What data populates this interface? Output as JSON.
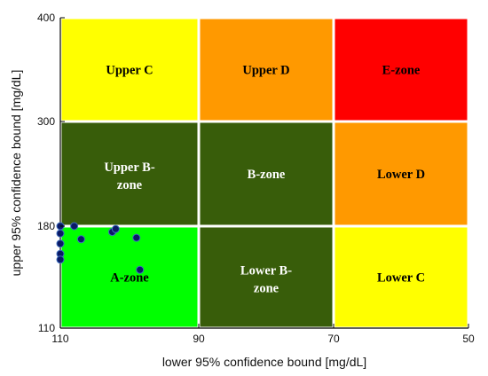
{
  "chart_data": {
    "type": "scatter",
    "title": "",
    "xlabel": "lower 95% confidence bound [mg/dL]",
    "ylabel": "upper 95% confidence bound [mg/dL]",
    "x_ticks": [
      "110",
      "90",
      "70",
      "50"
    ],
    "y_ticks": [
      "400",
      "300",
      "180",
      "110"
    ],
    "x_boundaries": [
      110,
      90,
      70,
      50
    ],
    "y_boundaries": [
      110,
      180,
      300,
      400
    ],
    "zones": [
      {
        "label": "Upper C",
        "color": "#ffff00",
        "text_color": "#000000",
        "x_range": [
          110,
          90
        ],
        "y_range": [
          300,
          400
        ]
      },
      {
        "label": "Upper D",
        "color": "#ff9900",
        "text_color": "#000000",
        "x_range": [
          90,
          70
        ],
        "y_range": [
          300,
          400
        ]
      },
      {
        "label": "E-zone",
        "color": "#ff0000",
        "text_color": "#000000",
        "x_range": [
          70,
          50
        ],
        "y_range": [
          300,
          400
        ]
      },
      {
        "label": "Upper B-zone",
        "color": "#385d0a",
        "text_color": "#ffffff",
        "x_range": [
          110,
          90
        ],
        "y_range": [
          180,
          300
        ]
      },
      {
        "label": "B-zone",
        "color": "#385d0a",
        "text_color": "#ffffff",
        "x_range": [
          90,
          70
        ],
        "y_range": [
          180,
          300
        ]
      },
      {
        "label": "Lower D",
        "color": "#ff9900",
        "text_color": "#000000",
        "x_range": [
          70,
          50
        ],
        "y_range": [
          180,
          300
        ]
      },
      {
        "label": "A-zone",
        "color": "#00ff00",
        "text_color": "#000000",
        "x_range": [
          110,
          90
        ],
        "y_range": [
          110,
          180
        ]
      },
      {
        "label": "Lower B-zone",
        "color": "#385d0a",
        "text_color": "#ffffff",
        "x_range": [
          90,
          70
        ],
        "y_range": [
          110,
          180
        ]
      },
      {
        "label": "Lower C",
        "color": "#ffff00",
        "text_color": "#000000",
        "x_range": [
          70,
          50
        ],
        "y_range": [
          110,
          180
        ]
      }
    ],
    "points": [
      {
        "x": 110,
        "y": 180
      },
      {
        "x": 110,
        "y": 175
      },
      {
        "x": 110,
        "y": 168
      },
      {
        "x": 110,
        "y": 161
      },
      {
        "x": 110,
        "y": 157
      },
      {
        "x": 108,
        "y": 180
      },
      {
        "x": 107,
        "y": 171
      },
      {
        "x": 102.5,
        "y": 176
      },
      {
        "x": 102,
        "y": 178
      },
      {
        "x": 99,
        "y": 172
      },
      {
        "x": 98.5,
        "y": 150
      }
    ],
    "point_color": "#0b1a66",
    "point_edge": "#3f6fbf",
    "grid": false
  }
}
